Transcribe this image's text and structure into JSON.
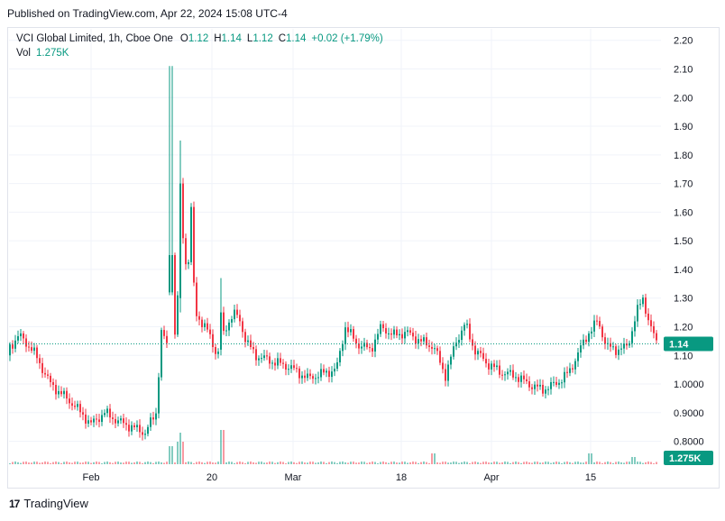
{
  "header": {
    "published": "Published on TradingView.com, Apr 22, 2024 15:08 UTC-4"
  },
  "legend": {
    "symbol": "VCI Global Limited, 1h, Cboe One",
    "o_label": "O",
    "o_value": "1.12",
    "h_label": "H",
    "h_value": "1.14",
    "l_label": "L",
    "l_value": "1.12",
    "c_label": "C",
    "c_value": "1.14",
    "change": "+0.02 (+1.79%)",
    "vol_label": "Vol",
    "vol_value": "1.275K"
  },
  "footer": {
    "brand": "TradingView",
    "logo": "17"
  },
  "colors": {
    "up": "#089981",
    "down": "#f23645",
    "grid": "#f0f3fa",
    "last_price": "#089981"
  },
  "chart_data": {
    "type": "candlestick",
    "price_axis": {
      "ticks": [
        "2.20",
        "2.10",
        "2.00",
        "1.90",
        "1.80",
        "1.70",
        "1.60",
        "1.50",
        "1.40",
        "1.30",
        "1.20",
        "1.10",
        "1.0000",
        "0.9000",
        "0.8000"
      ],
      "min": 0.72,
      "max": 2.24
    },
    "time_axis": {
      "labels": [
        "Feb",
        "20",
        "Mar",
        "18",
        "Apr",
        "15"
      ]
    },
    "last_price_label": "1.14",
    "last_volume_label": "1.275K",
    "key_points": [
      {
        "t": "Jan 23",
        "close": 1.16
      },
      {
        "t": "Feb 1",
        "close": 0.85
      },
      {
        "t": "Feb 9",
        "close": 0.82
      },
      {
        "t": "Feb 13",
        "open": 1.18,
        "high": 2.11,
        "low": 1.31,
        "close": 1.45
      },
      {
        "t": "Feb 14",
        "high": 1.85,
        "close": 1.25
      },
      {
        "t": "Feb 22",
        "high": 1.37,
        "close": 1.1
      },
      {
        "t": "Mar 1",
        "close": 1.02
      },
      {
        "t": "Mar 8",
        "close": 1.22
      },
      {
        "t": "Mar 20",
        "close": 1.13
      },
      {
        "t": "Mar 27",
        "close": 1.05
      },
      {
        "t": "Apr 4",
        "close": 0.99
      },
      {
        "t": "Apr 10",
        "close": 1.21
      },
      {
        "t": "Apr 17",
        "high": 1.32,
        "close": 1.25
      },
      {
        "t": "Apr 22",
        "close": 1.14
      }
    ]
  }
}
